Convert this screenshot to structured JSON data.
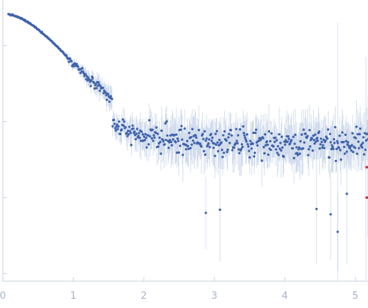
{
  "chart_data": {
    "type": "scatter",
    "title": "",
    "xlabel": "",
    "ylabel": "",
    "xlim": [
      0,
      5.18
    ],
    "ylim": [
      -2.1,
      1.6
    ],
    "grid": false,
    "legend": "none",
    "x_ticks": [
      {
        "value": 0,
        "label": "0"
      },
      {
        "value": 1,
        "label": "1"
      },
      {
        "value": 2,
        "label": "2"
      },
      {
        "value": 3,
        "label": "3"
      },
      {
        "value": 4,
        "label": "4"
      },
      {
        "value": 5,
        "label": "5"
      }
    ],
    "y_ticks": [
      1.0,
      0.0,
      -1.0,
      -2.0
    ],
    "colors": {
      "points": "#3f63ad",
      "error_bars": "#9fb6d9",
      "outliers": "#d62728",
      "axes": "#c5d0dd",
      "tick_labels": "#a6b4c8"
    },
    "series": [
      {
        "model": "intensity-profile",
        "x_start": 0.08,
        "x_end": 5.18,
        "n_points": 560,
        "guinier_start_y": 1.42,
        "guinier_rg": 1.95,
        "plateau_y": -0.28,
        "plateau_scatter": 0.24,
        "outlier_points": [
          {
            "x": 2.88,
            "y": -1.2
          },
          {
            "x": 3.08,
            "y": -1.16
          },
          {
            "x": 4.45,
            "y": -1.15
          },
          {
            "x": 4.65,
            "y": -1.22
          },
          {
            "x": 4.75,
            "y": -1.45
          },
          {
            "x": 4.88,
            "y": -0.95
          },
          {
            "x": 5.18,
            "y": -1.0
          },
          {
            "x": 5.18,
            "y": -0.6
          }
        ],
        "red_points": [
          {
            "x": 5.18,
            "y": -0.6
          },
          {
            "x": 5.18,
            "y": -1.0
          }
        ]
      }
    ]
  }
}
